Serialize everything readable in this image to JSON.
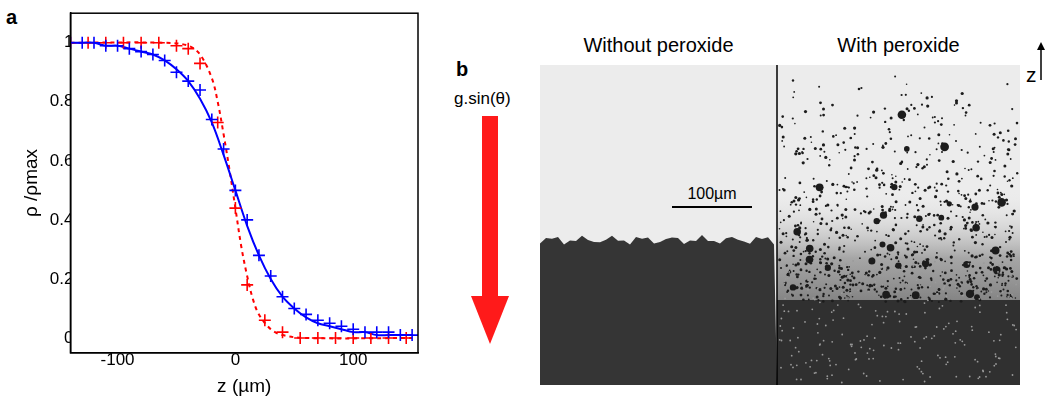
{
  "chart_data": {
    "type": "scatter",
    "panel_label": "a",
    "x_label": "z (µm)",
    "y_label": "ρ /ρmax",
    "xlim": [
      -140,
      155
    ],
    "xticks": [
      -100,
      0,
      100
    ],
    "ylim": [
      -0.05,
      1.1
    ],
    "yticks": [
      0,
      0.2,
      0.4,
      0.6,
      0.8,
      1
    ],
    "grid": false,
    "series": [
      {
        "color": "#0000ff",
        "marker": "plus",
        "x": [
          -140,
          -130,
          -120,
          -110,
          -100,
          -90,
          -80,
          -70,
          -60,
          -50,
          -40,
          -30,
          -20,
          -10,
          0,
          10,
          20,
          30,
          40,
          50,
          60,
          70,
          80,
          90,
          100,
          110,
          120,
          130,
          140,
          150
        ],
        "values": [
          1.0,
          1.0,
          1.0,
          0.99,
          0.99,
          0.98,
          0.97,
          0.96,
          0.94,
          0.9,
          0.87,
          0.84,
          0.74,
          0.64,
          0.5,
          0.4,
          0.28,
          0.21,
          0.14,
          0.1,
          0.08,
          0.06,
          0.05,
          0.04,
          0.03,
          0.02,
          0.02,
          0.02,
          0.01,
          0.01
        ]
      },
      {
        "color": "#0000ff",
        "type": "line",
        "line_style": "solid",
        "x": [
          -140,
          -130,
          -120,
          -110,
          -100,
          -90,
          -80,
          -70,
          -60,
          -50,
          -40,
          -30,
          -20,
          -10,
          0,
          10,
          20,
          30,
          40,
          50,
          60,
          70,
          80,
          90,
          100,
          110,
          120,
          130,
          140,
          150
        ],
        "values": [
          1.0,
          1.0,
          1.0,
          0.99,
          0.99,
          0.98,
          0.97,
          0.96,
          0.94,
          0.91,
          0.87,
          0.81,
          0.73,
          0.62,
          0.5,
          0.38,
          0.28,
          0.2,
          0.14,
          0.1,
          0.07,
          0.05,
          0.04,
          0.03,
          0.02,
          0.02,
          0.01,
          0.01,
          0.01,
          0.01
        ]
      },
      {
        "color": "#ff0000",
        "marker": "plus",
        "x": [
          -140,
          -125,
          -110,
          -95,
          -80,
          -65,
          -50,
          -40,
          -30,
          -15,
          0,
          10,
          25,
          40,
          55,
          70,
          85,
          100,
          115,
          130,
          145
        ],
        "values": [
          1.0,
          1.0,
          1.0,
          1.0,
          1.0,
          1.0,
          0.99,
          0.98,
          0.93,
          0.73,
          0.44,
          0.18,
          0.06,
          0.02,
          0,
          0,
          0,
          0,
          0,
          0,
          0
        ]
      },
      {
        "color": "#ff0000",
        "type": "line",
        "line_style": "dashed",
        "x": [
          -140,
          -60,
          -40,
          -30,
          -20,
          -15,
          -10,
          -5,
          0,
          5,
          10,
          15,
          20,
          30,
          40,
          60,
          150
        ],
        "values": [
          1.0,
          1.0,
          0.99,
          0.96,
          0.88,
          0.8,
          0.69,
          0.57,
          0.44,
          0.31,
          0.21,
          0.13,
          0.08,
          0.03,
          0.01,
          0,
          0
        ]
      }
    ]
  },
  "photo_panel": {
    "panel_label": "b",
    "left_title": "Without peroxide",
    "right_title": "With peroxide",
    "scale_bar": "100µm",
    "arrow_label": "g.sin(θ)",
    "axis_label": "z"
  }
}
